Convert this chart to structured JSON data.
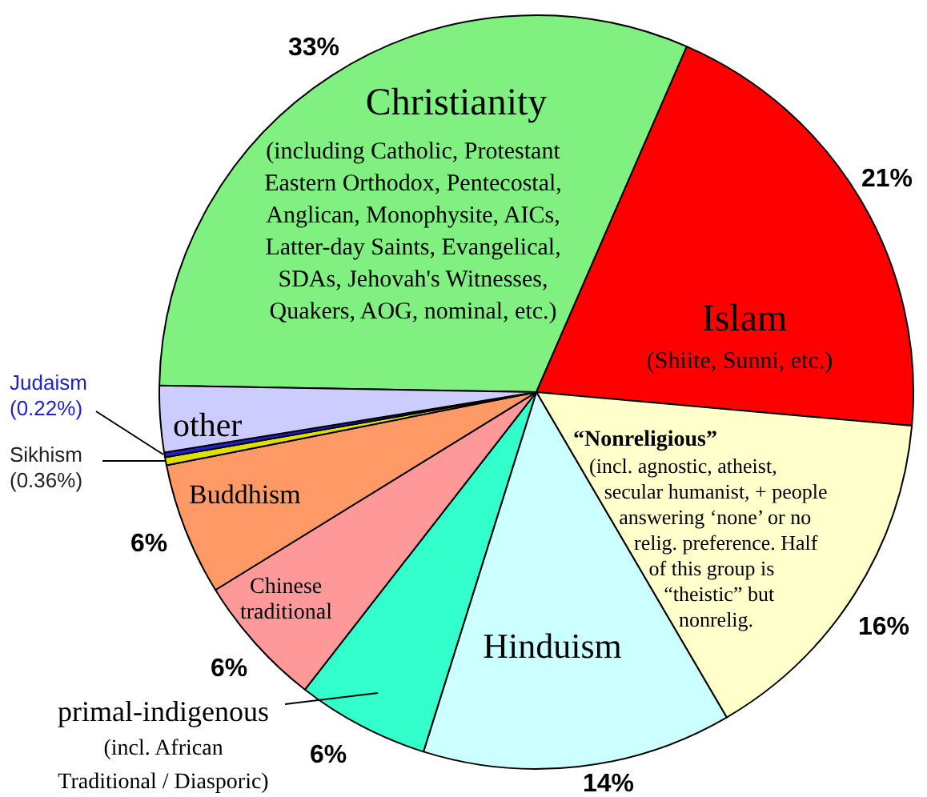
{
  "chart_data": {
    "type": "pie",
    "categories": [
      "Christianity",
      "Islam",
      "“Nonreligious”",
      "Hinduism",
      "primal-indigenous",
      "Chinese traditional",
      "Buddhism",
      "Sikhism",
      "Judaism",
      "other"
    ],
    "values": [
      33,
      21,
      16,
      14,
      6,
      6,
      6,
      0.36,
      0.22,
      3
    ],
    "colors": [
      "#80f080",
      "#ff0000",
      "#ffffcc",
      "#ccffff",
      "#33ffcc",
      "#ff9999",
      "#ff9966",
      "#e0e000",
      "#2020d0",
      "#ccccff"
    ],
    "value_labels": [
      "33%",
      "21%",
      "16%",
      "14%",
      "6%",
      "6%",
      "6%",
      "(0.36%)",
      "(0.22%)",
      null
    ],
    "annotations": [
      {
        "text": "(including Catholic, Protestant\nEastern Orthodox, Pentecostal,\nAnglican, Monophysite, AICs,\nLatter-day Saints, Evangelical,\nSDAs, Jehovah's Witnesses,\nQuakers, AOG, nominal, etc.)",
        "x": "Christianity"
      },
      {
        "text": "(Shiite, Sunni, etc.)",
        "x": "Islam"
      },
      {
        "text": "(incl. agnostic, atheist,\nsecular humanist, + people\nanswering ‘none’ or no\nrelig. preference. Half\nof this group is\n“theistic” but\nnonrelig.",
        "x": "“Nonreligious”"
      },
      {
        "text": "(incl. African\nTraditional / Diasporic)",
        "x": "primal-indigenous"
      }
    ],
    "legend": false
  }
}
